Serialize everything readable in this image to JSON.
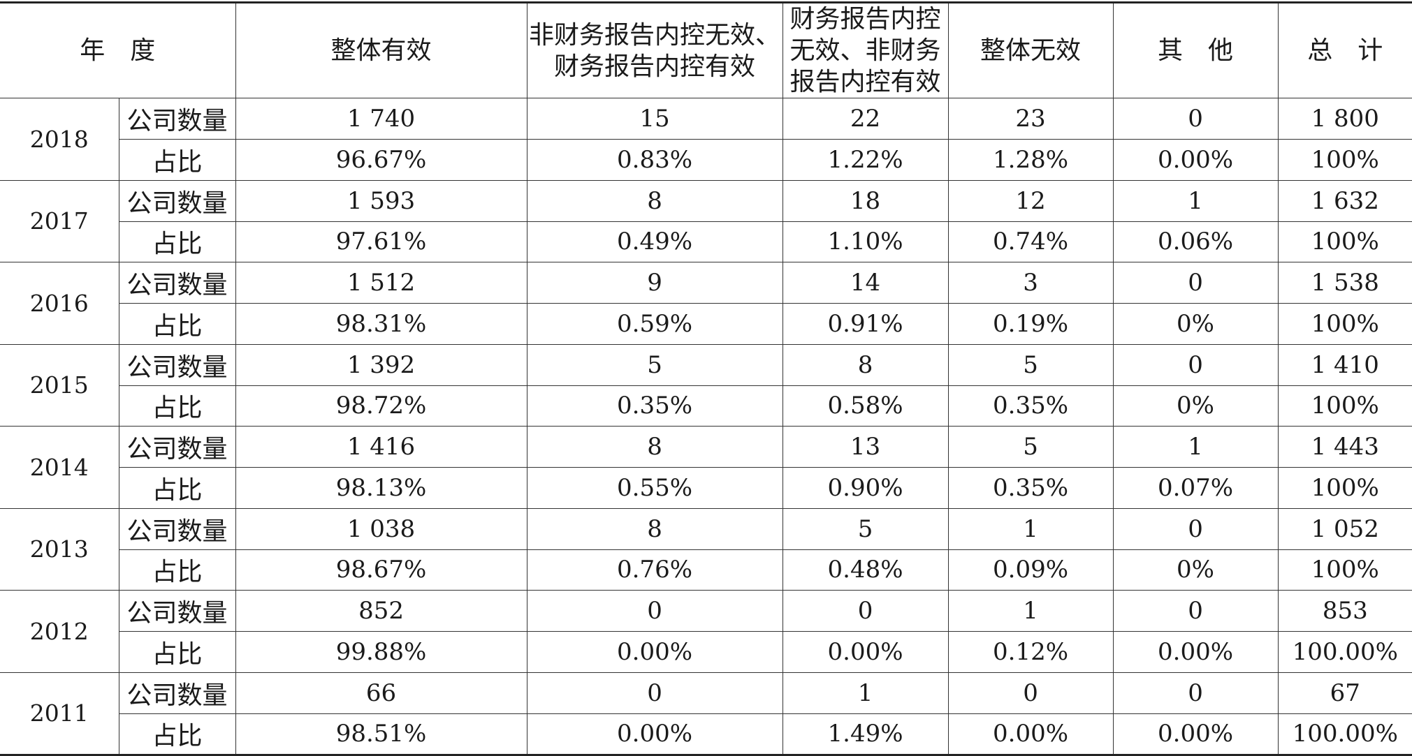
{
  "table": {
    "headers": {
      "year": "年　度",
      "effective": "整体有效",
      "nonfin_ineffective": "非财务报告内控无效、财务报告内控有效",
      "fin_ineffective": "财务报告内控无效、非财务报告内控有效",
      "ineffective": "整体无效",
      "other": "其　他",
      "total": "总　计"
    },
    "row_labels": {
      "count": "公司数量",
      "ratio": "占比"
    },
    "rows": [
      {
        "year": "2018",
        "count": [
          "1 740",
          "15",
          "22",
          "23",
          "0",
          "1 800"
        ],
        "ratio": [
          "96.67%",
          "0.83%",
          "1.22%",
          "1.28%",
          "0.00%",
          "100%"
        ]
      },
      {
        "year": "2017",
        "count": [
          "1 593",
          "8",
          "18",
          "12",
          "1",
          "1 632"
        ],
        "ratio": [
          "97.61%",
          "0.49%",
          "1.10%",
          "0.74%",
          "0.06%",
          "100%"
        ]
      },
      {
        "year": "2016",
        "count": [
          "1 512",
          "9",
          "14",
          "3",
          "0",
          "1 538"
        ],
        "ratio": [
          "98.31%",
          "0.59%",
          "0.91%",
          "0.19%",
          "0%",
          "100%"
        ]
      },
      {
        "year": "2015",
        "count": [
          "1 392",
          "5",
          "8",
          "5",
          "0",
          "1 410"
        ],
        "ratio": [
          "98.72%",
          "0.35%",
          "0.58%",
          "0.35%",
          "0%",
          "100%"
        ]
      },
      {
        "year": "2014",
        "count": [
          "1 416",
          "8",
          "13",
          "5",
          "1",
          "1 443"
        ],
        "ratio": [
          "98.13%",
          "0.55%",
          "0.90%",
          "0.35%",
          "0.07%",
          "100%"
        ]
      },
      {
        "year": "2013",
        "count": [
          "1 038",
          "8",
          "5",
          "1",
          "0",
          "1 052"
        ],
        "ratio": [
          "98.67%",
          "0.76%",
          "0.48%",
          "0.09%",
          "0%",
          "100%"
        ]
      },
      {
        "year": "2012",
        "count": [
          "852",
          "0",
          "0",
          "1",
          "0",
          "853"
        ],
        "ratio": [
          "99.88%",
          "0.00%",
          "0.00%",
          "0.12%",
          "0.00%",
          "100.00%"
        ]
      },
      {
        "year": "2011",
        "count": [
          "66",
          "0",
          "1",
          "0",
          "0",
          "67"
        ],
        "ratio": [
          "98.51%",
          "0.00%",
          "1.49%",
          "0.00%",
          "0.00%",
          "100.00%"
        ]
      }
    ]
  }
}
